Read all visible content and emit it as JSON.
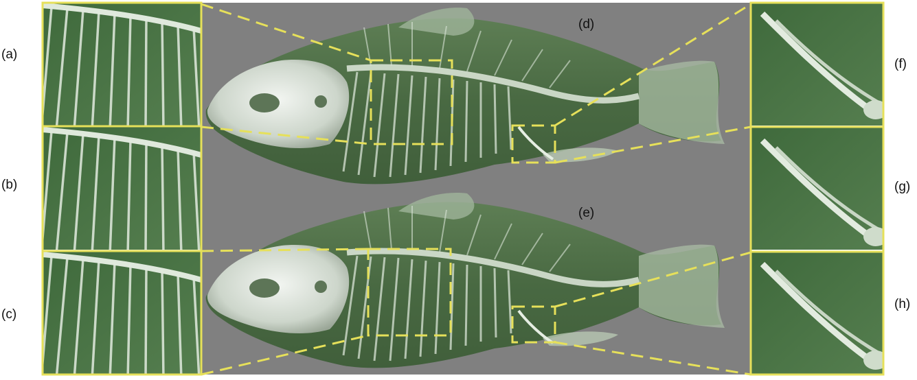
{
  "labels": {
    "a": "(a)",
    "b": "(b)",
    "c": "(c)",
    "d": "(d)",
    "e": "(e)",
    "f": "(f)",
    "g": "(g)",
    "h": "(h)"
  },
  "colors": {
    "background": "#808080",
    "frame": "#e6e05a",
    "tissue_green": "#4a6e43",
    "bone_white": "#e2ebe0"
  }
}
